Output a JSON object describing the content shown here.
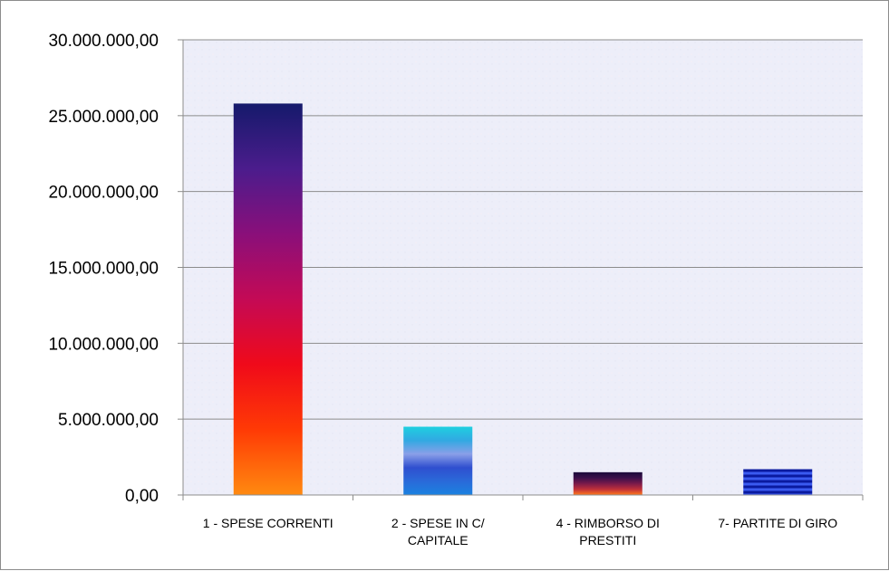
{
  "chart_data": {
    "type": "bar",
    "title": "",
    "xlabel": "",
    "ylabel": "",
    "ylim": [
      0,
      30000000
    ],
    "y_tick_values": [
      0,
      5000000,
      10000000,
      15000000,
      20000000,
      25000000,
      30000000
    ],
    "y_tick_labels": [
      "0,00",
      "5.000.000,00",
      "10.000.000,00",
      "15.000.000,00",
      "20.000.000,00",
      "25.000.000,00",
      "30.000.000,00"
    ],
    "grid": true,
    "legend": "none",
    "categories": [
      [
        "1 - SPESE CORRENTI"
      ],
      [
        "2 - SPESE IN C/",
        "CAPITALE"
      ],
      [
        "4 - RIMBORSO DI",
        "PRESTITI"
      ],
      [
        "7- PARTITE DI GIRO"
      ]
    ],
    "values": [
      25800000,
      4500000,
      1500000,
      1700000
    ],
    "bar_fills": [
      {
        "style": "vertical-gradient",
        "stops": [
          "#151a6b",
          "#4b1c8c",
          "#8a0f7a",
          "#c40a55",
          "#f00a1a",
          "#ff3a05",
          "#ff8a10"
        ]
      },
      {
        "style": "vertical-gradient",
        "stops": [
          "#1fcfe0",
          "#31a9e2",
          "#8a9fe8",
          "#2f4fcf",
          "#2a6ad9",
          "#1a82e0"
        ]
      },
      {
        "style": "vertical-gradient",
        "stops": [
          "#1a0a3a",
          "#3a0f4a",
          "#7a1a4a",
          "#c0303a",
          "#ff7a1a"
        ]
      },
      {
        "style": "horizontal-stripes",
        "stops": [
          "#0a1aa0",
          "#3a5af0"
        ]
      }
    ]
  }
}
